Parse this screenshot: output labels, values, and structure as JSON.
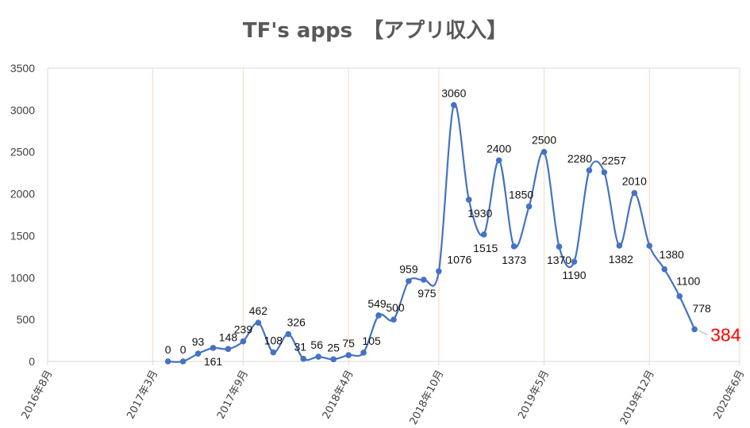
{
  "title": "TF's apps　【アプリ収入】",
  "chart_data": {
    "type": "line",
    "title": "TF's apps　【アプリ収入】",
    "xlabel": "",
    "ylabel": "",
    "ylim": [
      0,
      3500
    ],
    "y_ticks": [
      0,
      500,
      1000,
      1500,
      2000,
      2500,
      3000,
      3500
    ],
    "x_tick_labels": [
      "2016年8月",
      "2017年3月",
      "2017年9月",
      "2018年4月",
      "2018年10月",
      "2019年5月",
      "2019年12月",
      "2020年6月"
    ],
    "x_tick_dates": [
      "2016-08",
      "2017-03",
      "2017-09",
      "2018-04",
      "2018-10",
      "2019-05",
      "2019-12",
      "2020-06"
    ],
    "grid": "vertical",
    "legend": "none",
    "series": [
      {
        "color": "#4472c4",
        "points": [
          {
            "x": "2017-04",
            "y": 0
          },
          {
            "x": "2017-05",
            "y": 0
          },
          {
            "x": "2017-06",
            "y": 93
          },
          {
            "x": "2017-07",
            "y": 161
          },
          {
            "x": "2017-08",
            "y": 148
          },
          {
            "x": "2017-09",
            "y": 239
          },
          {
            "x": "2017-10",
            "y": 462
          },
          {
            "x": "2017-11",
            "y": 108
          },
          {
            "x": "2017-12",
            "y": 326
          },
          {
            "x": "2018-01",
            "y": 31
          },
          {
            "x": "2018-02",
            "y": 56
          },
          {
            "x": "2018-03",
            "y": 25
          },
          {
            "x": "2018-04",
            "y": 75
          },
          {
            "x": "2018-05",
            "y": 105
          },
          {
            "x": "2018-06",
            "y": 549
          },
          {
            "x": "2018-07",
            "y": 500
          },
          {
            "x": "2018-08",
            "y": 959
          },
          {
            "x": "2018-09",
            "y": 975
          },
          {
            "x": "2018-10",
            "y": 1076
          },
          {
            "x": "2018-11",
            "y": 3060
          },
          {
            "x": "2018-12",
            "y": 1930
          },
          {
            "x": "2019-01",
            "y": 1515
          },
          {
            "x": "2019-02",
            "y": 2400
          },
          {
            "x": "2019-03",
            "y": 1373
          },
          {
            "x": "2019-04",
            "y": 1850
          },
          {
            "x": "2019-05",
            "y": 2500
          },
          {
            "x": "2019-06",
            "y": 1370
          },
          {
            "x": "2019-07",
            "y": 1190
          },
          {
            "x": "2019-08",
            "y": 2280
          },
          {
            "x": "2019-09",
            "y": 2257
          },
          {
            "x": "2019-10",
            "y": 1382
          },
          {
            "x": "2019-11",
            "y": 2010
          },
          {
            "x": "2019-12",
            "y": 1380
          },
          {
            "x": "2020-01",
            "y": 1100
          },
          {
            "x": "2020-02",
            "y": 778
          },
          {
            "x": "2020-03",
            "y": 384
          }
        ]
      }
    ],
    "highlight": {
      "value": 384,
      "color": "#ff0000"
    },
    "colors": {
      "line": "#4472c4",
      "grid": "#f4d9be",
      "axis": "#d9d9d9",
      "highlight": "#ff0000"
    }
  }
}
